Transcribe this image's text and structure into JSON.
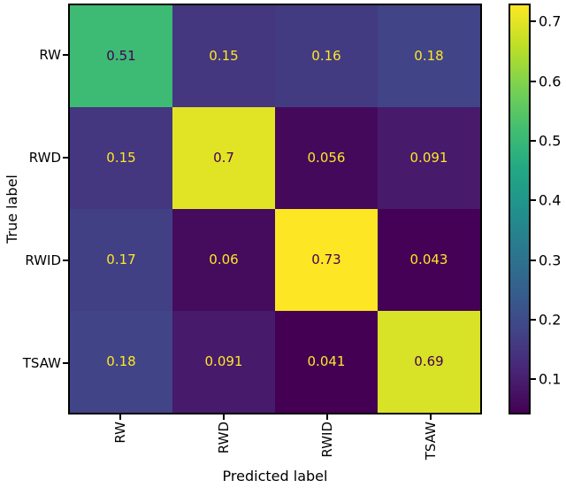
{
  "figure": {
    "background": "#ffffff",
    "spine_color": "#000000",
    "tick_color": "#000000"
  },
  "chart_data": {
    "type": "heatmap",
    "title": "",
    "xlabel": "Predicted label",
    "ylabel": "True label",
    "x_categories": [
      "RW",
      "RWD",
      "RWID",
      "TSAW"
    ],
    "y_categories": [
      "RW",
      "RWD",
      "RWID",
      "TSAW"
    ],
    "matrix": [
      [
        0.51,
        0.15,
        0.16,
        0.18
      ],
      [
        0.15,
        0.7,
        0.056,
        0.091
      ],
      [
        0.17,
        0.06,
        0.73,
        0.043
      ],
      [
        0.18,
        0.091,
        0.041,
        0.69
      ]
    ],
    "cell_labels": [
      [
        "0.51",
        "0.15",
        "0.16",
        "0.18"
      ],
      [
        "0.15",
        "0.7",
        "0.056",
        "0.091"
      ],
      [
        "0.17",
        "0.06",
        "0.73",
        "0.043"
      ],
      [
        "0.18",
        "0.091",
        "0.041",
        "0.69"
      ]
    ],
    "cell_colors": [
      [
        "#3dba74",
        "#44367f",
        "#433b82",
        "#414487"
      ],
      [
        "#44367f",
        "#e1e425",
        "#45095b",
        "#471a6c"
      ],
      [
        "#424085",
        "#450b5d",
        "#fde725",
        "#440155"
      ],
      [
        "#414487",
        "#471a6c",
        "#440154",
        "#d8e226"
      ]
    ],
    "colormap": "viridis",
    "colormap_stops": [
      "#440154",
      "#482475",
      "#414487",
      "#355f8d",
      "#2a788e",
      "#21918c",
      "#22a884",
      "#44bf70",
      "#7ad151",
      "#bddf26",
      "#fde725"
    ],
    "vmin": 0.041,
    "vmax": 0.73,
    "colorbar_ticks": [
      "0.1",
      "0.2",
      "0.3",
      "0.4",
      "0.5",
      "0.6",
      "0.7"
    ],
    "text_color_light": "#fde725",
    "text_color_dark": "#440154",
    "text_threshold": 0.386,
    "grid": "off",
    "legend": "colorbar-right"
  }
}
